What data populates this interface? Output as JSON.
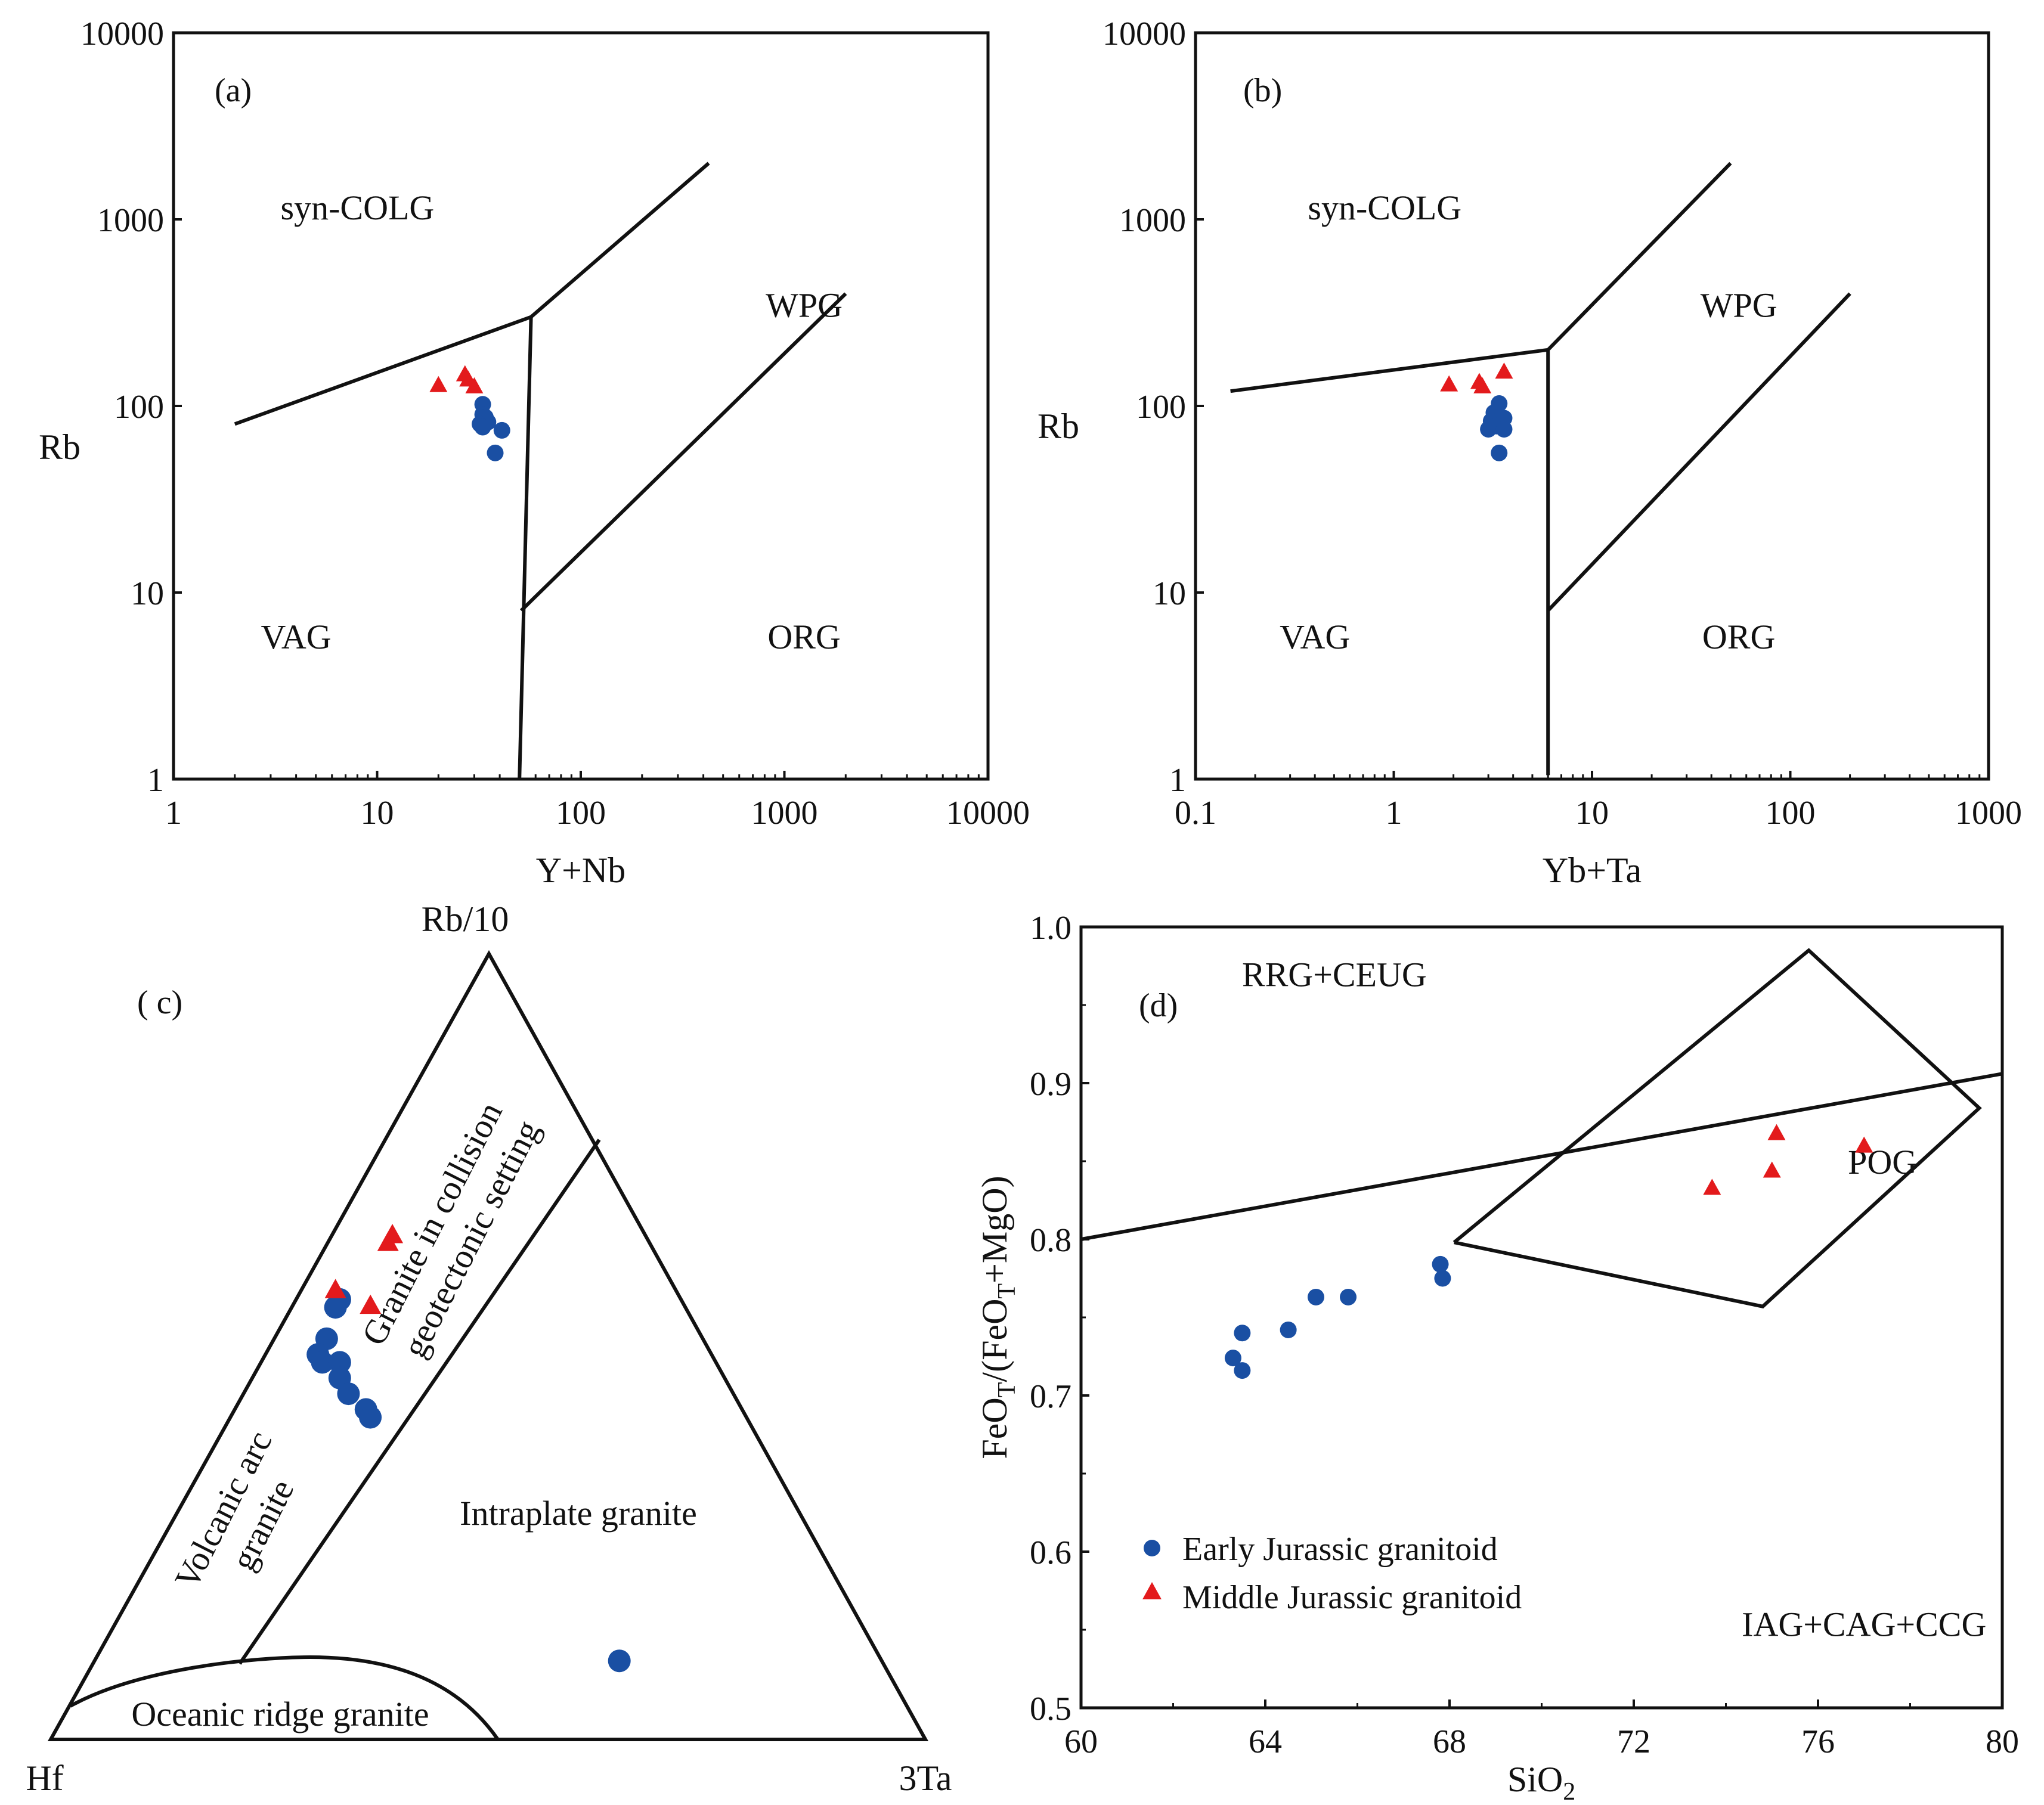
{
  "colors": {
    "early": "#1a4fa3",
    "middle": "#e31a1c",
    "line": "#111111"
  },
  "legend": {
    "early": "Early Jurassic granitoid",
    "middle": "Middle Jurassic granitoid"
  },
  "chart_data": [
    {
      "id": "a",
      "type": "scatter",
      "panel_label": "(a)",
      "xscale": "log",
      "yscale": "log",
      "xlim": [
        1,
        10000
      ],
      "ylim": [
        1,
        10000
      ],
      "xticks": [
        1,
        10,
        100,
        1000,
        10000
      ],
      "yticks": [
        1,
        10,
        100,
        1000,
        10000
      ],
      "xlabel": "Y+Nb",
      "ylabel": "Rb",
      "fields": [
        {
          "text": "syn-COLG",
          "at": [
            8,
            1000
          ]
        },
        {
          "text": "WPG",
          "at": [
            1250,
            300
          ]
        },
        {
          "text": "VAG",
          "at": [
            4,
            5
          ]
        },
        {
          "text": "ORG",
          "at": [
            1250,
            5
          ]
        }
      ],
      "boundaries": [
        [
          [
            2,
            80
          ],
          [
            57,
            300
          ],
          [
            425,
            2000
          ]
        ],
        [
          [
            57,
            300
          ],
          [
            50,
            1
          ]
        ],
        [
          [
            51,
            8
          ],
          [
            2000,
            400
          ]
        ]
      ],
      "series": [
        {
          "name": "Early Jurassic granitoid",
          "marker": "circle",
          "points": [
            [
              33,
              102
            ],
            [
              33,
              90
            ],
            [
              34,
              87
            ],
            [
              35,
              82
            ],
            [
              32,
              80
            ],
            [
              33,
              77
            ],
            [
              41,
              74
            ],
            [
              38,
              56
            ]
          ]
        },
        {
          "name": "Middle Jurassic granitoid",
          "marker": "triangle",
          "points": [
            [
              20,
              127
            ],
            [
              27,
              145
            ],
            [
              28,
              136
            ],
            [
              30,
              125
            ]
          ]
        }
      ]
    },
    {
      "id": "b",
      "type": "scatter",
      "panel_label": "(b)",
      "xscale": "log",
      "yscale": "log",
      "xlim": [
        0.1,
        1000
      ],
      "ylim": [
        1,
        10000
      ],
      "xticks": [
        0.1,
        1,
        10,
        100,
        1000
      ],
      "yticks": [
        1,
        10,
        100,
        1000,
        10000
      ],
      "xlabel": "Yb+Ta",
      "ylabel": "Rb",
      "fields": [
        {
          "text": "syn-COLG",
          "at": [
            0.9,
            1000
          ]
        },
        {
          "text": "WPG",
          "at": [
            55,
            300
          ]
        },
        {
          "text": "VAG",
          "at": [
            0.4,
            5
          ]
        },
        {
          "text": "ORG",
          "at": [
            55,
            5
          ]
        }
      ],
      "boundaries": [
        [
          [
            0.15,
            120
          ],
          [
            6,
            200
          ],
          [
            50,
            2000
          ]
        ],
        [
          [
            6,
            200
          ],
          [
            6,
            1.05
          ]
        ],
        [
          [
            6,
            8
          ],
          [
            200,
            400
          ]
        ]
      ],
      "series": [
        {
          "name": "Early Jurassic granitoid",
          "marker": "circle",
          "points": [
            [
              3.4,
              103
            ],
            [
              3.2,
              92
            ],
            [
              3.6,
              86
            ],
            [
              3.1,
              83
            ],
            [
              3.3,
              78
            ],
            [
              3.0,
              75
            ],
            [
              3.6,
              75
            ],
            [
              3.4,
              56
            ]
          ]
        },
        {
          "name": "Middle Jurassic granitoid",
          "marker": "triangle",
          "points": [
            [
              1.9,
              128
            ],
            [
              2.7,
              132
            ],
            [
              2.8,
              125
            ],
            [
              3.6,
              150
            ]
          ]
        }
      ]
    },
    {
      "id": "c",
      "type": "ternary",
      "panel_label": "( c)",
      "apex_labels": {
        "top": "Rb/10",
        "left": "Hf",
        "right": "3Ta"
      },
      "fields": [
        {
          "lines": [
            "Granite in collision",
            "geotectonic setting"
          ]
        },
        {
          "lines": [
            "Volcanic arc",
            "granite"
          ]
        },
        {
          "lines": [
            "Intraplate granite"
          ]
        },
        {
          "lines": [
            "Oceanic ridge granite"
          ]
        }
      ],
      "series": [
        {
          "name": "Early Jurassic granitoid",
          "marker": "circle",
          "points": [
            [
              0.1,
              0.3,
              0.6
            ],
            [
              0.51,
              0.43,
              0.06
            ],
            [
              0.49,
              0.45,
              0.06
            ],
            [
              0.48,
              0.45,
              0.07
            ],
            [
              0.48,
              0.43,
              0.09
            ],
            [
              0.46,
              0.44,
              0.1
            ],
            [
              0.44,
              0.44,
              0.12
            ],
            [
              0.42,
              0.43,
              0.15
            ],
            [
              0.41,
              0.43,
              0.16
            ],
            [
              0.56,
              0.39,
              0.05
            ],
            [
              0.55,
              0.4,
              0.05
            ]
          ]
        },
        {
          "name": "Middle Jurassic granitoid",
          "marker": "triangle",
          "points": [
            [
              0.64,
              0.29,
              0.07
            ],
            [
              0.63,
              0.3,
              0.07
            ],
            [
              0.57,
              0.39,
              0.04
            ],
            [
              0.55,
              0.36,
              0.09
            ]
          ]
        }
      ]
    },
    {
      "id": "d",
      "type": "scatter",
      "panel_label": "(d)",
      "xscale": "linear",
      "yscale": "linear",
      "xlim": [
        60,
        80
      ],
      "ylim": [
        0.5,
        1.0
      ],
      "xticks": [
        60,
        64,
        68,
        72,
        76,
        80
      ],
      "yticks": [
        0.5,
        0.6,
        0.7,
        0.8,
        0.9,
        1.0
      ],
      "xlabel": "SiO2",
      "ylabel": "FeOT/(FeOT+MgO)",
      "fields": [
        {
          "text": "RRG+CEUG",
          "at": [
            65.5,
            0.962
          ]
        },
        {
          "text": "POG",
          "at": [
            77.4,
            0.842
          ]
        },
        {
          "text": "IAG+CAG+CCG",
          "at": [
            77.0,
            0.546
          ]
        }
      ],
      "boundaries": [
        [
          [
            60,
            0.8
          ],
          [
            80,
            0.906
          ]
        ],
        [
          [
            68.1,
            0.798
          ],
          [
            75.8,
            0.985
          ],
          [
            79.5,
            0.884
          ],
          [
            74.8,
            0.757
          ],
          [
            68.1,
            0.798
          ]
        ]
      ],
      "series": [
        {
          "name": "Early Jurassic granitoid",
          "marker": "circle",
          "points": [
            [
              63.3,
              0.724
            ],
            [
              63.5,
              0.716
            ],
            [
              63.5,
              0.74
            ],
            [
              64.5,
              0.742
            ],
            [
              65.1,
              0.763
            ],
            [
              65.8,
              0.763
            ],
            [
              67.8,
              0.784
            ],
            [
              67.85,
              0.775
            ]
          ]
        },
        {
          "name": "Middle Jurassic granitoid",
          "marker": "triangle",
          "points": [
            [
              73.7,
              0.832
            ],
            [
              75.0,
              0.843
            ],
            [
              75.1,
              0.867
            ],
            [
              77.0,
              0.859
            ]
          ]
        }
      ]
    }
  ]
}
